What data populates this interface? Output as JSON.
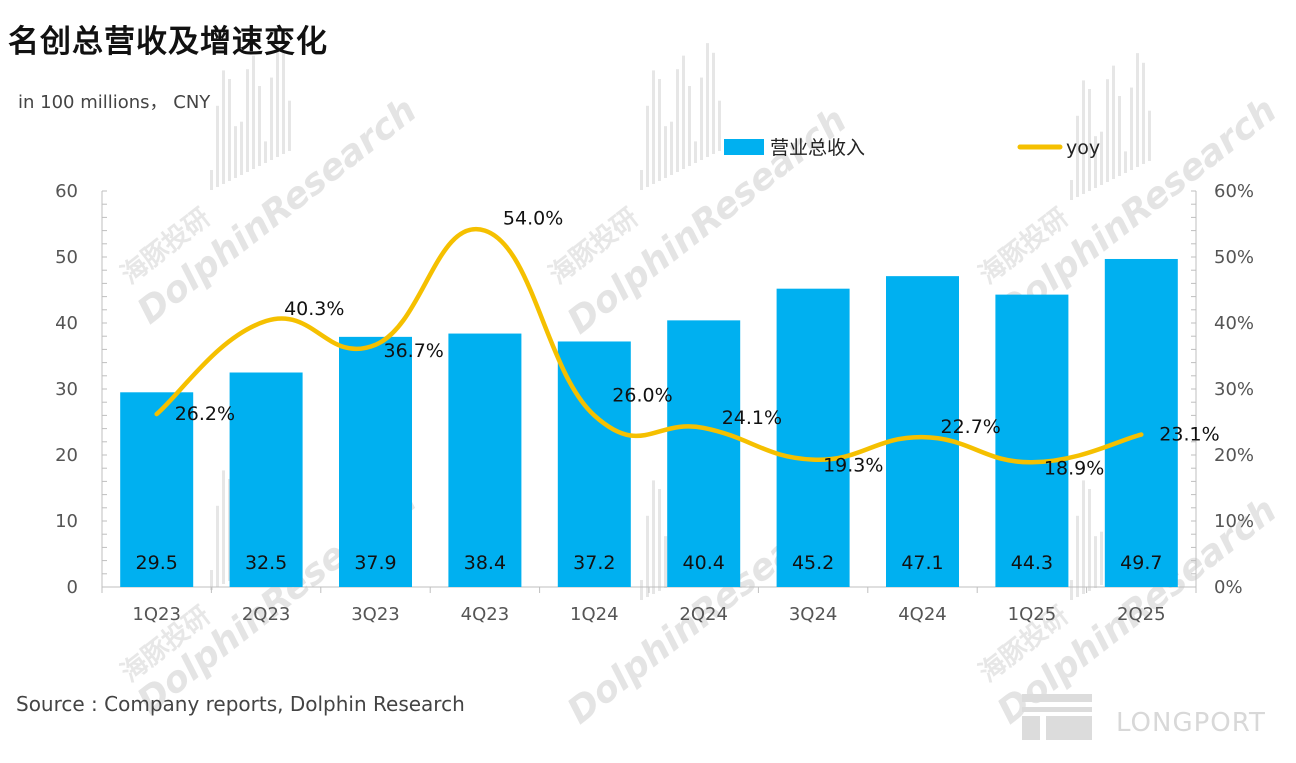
{
  "title": "名创总营收及增速变化",
  "unit_label": "in 100 millions， CNY",
  "source": "Source : Company reports, Dolphin Research",
  "watermark": {
    "en": "DolphinResearch",
    "cn": "海豚投研",
    "logo_text": "LONGPORT"
  },
  "colors": {
    "bar": "#00b0f0",
    "line": "#f5c000",
    "axis": "#bfbfbf",
    "watermark": "#cfcfcf"
  },
  "chart_data": {
    "type": "bar",
    "categories": [
      "1Q23",
      "2Q23",
      "3Q23",
      "4Q23",
      "1Q24",
      "2Q24",
      "3Q24",
      "4Q24",
      "1Q25",
      "2Q25"
    ],
    "series": [
      {
        "name": "营业总收入",
        "type": "bar",
        "axis": "left",
        "values": [
          29.5,
          32.5,
          37.9,
          38.4,
          37.2,
          40.4,
          45.2,
          47.1,
          44.3,
          49.7
        ],
        "labels": [
          "29.5",
          "32.5",
          "37.9",
          "38.4",
          "37.2",
          "40.4",
          "45.2",
          "47.1",
          "44.3",
          "49.7"
        ]
      },
      {
        "name": "yoy",
        "type": "line",
        "axis": "right",
        "values": [
          26.2,
          40.3,
          36.7,
          54.0,
          26.0,
          24.1,
          19.3,
          22.7,
          18.9,
          23.1
        ],
        "labels": [
          "26.2%",
          "40.3%",
          "36.7%",
          "54.0%",
          "26.0%",
          "24.1%",
          "19.3%",
          "22.7%",
          "18.9%",
          "23.1%"
        ]
      }
    ],
    "left_axis": {
      "ylim": [
        0,
        60
      ],
      "ticks": [
        "0",
        "10",
        "20",
        "30",
        "40",
        "50",
        "60"
      ]
    },
    "right_axis": {
      "ylim": [
        0,
        60
      ],
      "ticks": [
        "0%",
        "10%",
        "20%",
        "30%",
        "40%",
        "50%",
        "60%"
      ]
    },
    "legend": {
      "position": "top-right",
      "items": [
        "营业总收入",
        "yoy"
      ]
    },
    "grid": false
  }
}
